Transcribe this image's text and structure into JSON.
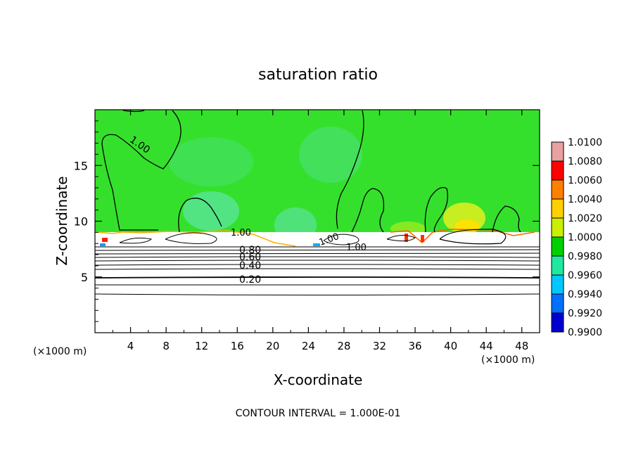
{
  "chart_data": {
    "type": "heatmap",
    "title": "saturation ratio",
    "xlabel": "X-coordinate",
    "ylabel": "Z-coordinate",
    "x_unit_left": "(×1000 m)",
    "x_unit_right": "(×1000 m)",
    "footer": "CONTOUR INTERVAL = 1.000E-01",
    "xlim": [
      0,
      50
    ],
    "ylim": [
      0,
      20
    ],
    "x_ticks": [
      4,
      8,
      12,
      16,
      20,
      24,
      28,
      32,
      36,
      40,
      44,
      48
    ],
    "y_ticks": [
      5,
      10,
      15
    ],
    "colorbar": {
      "ticks": [
        "1.0100",
        "1.0080",
        "1.0060",
        "1.0040",
        "1.0020",
        "1.0000",
        "0.9980",
        "0.9960",
        "0.9940",
        "0.9920",
        "0.9900"
      ],
      "colors": [
        "#e8a0a0",
        "#ff0000",
        "#ff8000",
        "#ffd000",
        "#c8f000",
        "#00d000",
        "#20e8a0",
        "#00c8ff",
        "#0070ff",
        "#0000d0",
        "#5000a0"
      ]
    },
    "contour_labels": [
      "1.00",
      "1.00",
      "1.00",
      "1.00",
      "0.80",
      "0.60",
      "0.40",
      "0.20"
    ],
    "contour_interval": 0.1
  },
  "colors": {
    "field_upper": "#35e02c",
    "field_lower": "#ffffff",
    "axis": "#000000"
  }
}
